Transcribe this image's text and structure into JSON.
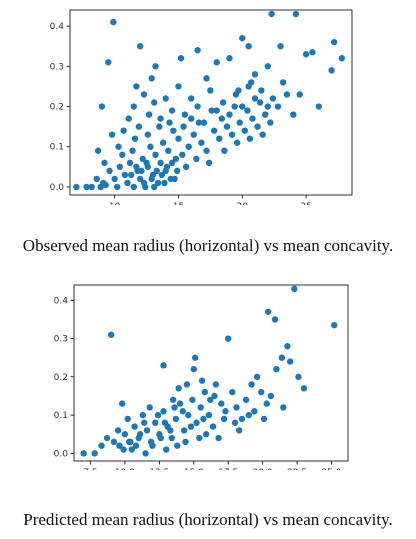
{
  "chart_data": [
    {
      "type": "scatter",
      "title": "",
      "xlabel": "",
      "ylabel": "",
      "color": "#1f77b4",
      "xlim": [
        6.5,
        28.6
      ],
      "ylim": [
        -0.02,
        0.44
      ],
      "xticks": [
        10,
        15,
        20,
        25
      ],
      "yticks": [
        0.0,
        0.1,
        0.2,
        0.3,
        0.4
      ],
      "ytick_labels": [
        "0.0",
        "0.1",
        "0.2",
        "0.3",
        "0.4"
      ],
      "points": [
        [
          7.0,
          0.0
        ],
        [
          7.8,
          0.0
        ],
        [
          8.2,
          0.0
        ],
        [
          8.6,
          0.02
        ],
        [
          8.9,
          0.0
        ],
        [
          9.1,
          0.01
        ],
        [
          9.3,
          0.005
        ],
        [
          8.7,
          0.09
        ],
        [
          9.2,
          0.06
        ],
        [
          9.8,
          0.13
        ],
        [
          9.5,
          0.31
        ],
        [
          9.9,
          0.41
        ],
        [
          9.0,
          0.2
        ],
        [
          9.6,
          0.04
        ],
        [
          10.0,
          0.02
        ],
        [
          10.2,
          0.0
        ],
        [
          10.4,
          0.05
        ],
        [
          10.6,
          0.08
        ],
        [
          10.8,
          0.03
        ],
        [
          11.0,
          0.01
        ],
        [
          11.2,
          0.06
        ],
        [
          11.4,
          0.09
        ],
        [
          11.6,
          0.12
        ],
        [
          11.8,
          0.04
        ],
        [
          12.0,
          0.02
        ],
        [
          12.2,
          0.07
        ],
        [
          12.4,
          0.0
        ],
        [
          12.6,
          0.05
        ],
        [
          12.8,
          0.1
        ],
        [
          13.0,
          0.03
        ],
        [
          13.2,
          0.08
        ],
        [
          13.4,
          0.01
        ],
        [
          13.6,
          0.06
        ],
        [
          13.8,
          0.11
        ],
        [
          14.0,
          0.04
        ],
        [
          14.2,
          0.09
        ],
        [
          14.4,
          0.02
        ],
        [
          14.6,
          0.14
        ],
        [
          14.8,
          0.07
        ],
        [
          15.0,
          0.12
        ],
        [
          10.3,
          0.1
        ],
        [
          10.7,
          0.14
        ],
        [
          11.1,
          0.17
        ],
        [
          11.5,
          0.2
        ],
        [
          11.9,
          0.15
        ],
        [
          12.3,
          0.23
        ],
        [
          12.7,
          0.18
        ],
        [
          13.1,
          0.21
        ],
        [
          12.0,
          0.35
        ],
        [
          13.2,
          0.3
        ],
        [
          11.7,
          0.25
        ],
        [
          12.9,
          0.27
        ],
        [
          13.6,
          0.17
        ],
        [
          14.0,
          0.22
        ],
        [
          14.5,
          0.19
        ],
        [
          15.0,
          0.25
        ],
        [
          15.5,
          0.18
        ],
        [
          16.0,
          0.22
        ],
        [
          16.5,
          0.2
        ],
        [
          17.0,
          0.16
        ],
        [
          17.5,
          0.24
        ],
        [
          18.0,
          0.19
        ],
        [
          18.5,
          0.21
        ],
        [
          19.0,
          0.18
        ],
        [
          19.5,
          0.23
        ],
        [
          20.0,
          0.2
        ],
        [
          20.5,
          0.25
        ],
        [
          21.0,
          0.22
        ],
        [
          21.5,
          0.24
        ],
        [
          22.0,
          0.2
        ],
        [
          15.2,
          0.32
        ],
        [
          16.5,
          0.34
        ],
        [
          18.0,
          0.31
        ],
        [
          19.0,
          0.32
        ],
        [
          20.0,
          0.37
        ],
        [
          20.5,
          0.35
        ],
        [
          22.3,
          0.43
        ],
        [
          23.0,
          0.35
        ],
        [
          24.2,
          0.43
        ],
        [
          25.0,
          0.33
        ],
        [
          25.5,
          0.335
        ],
        [
          23.5,
          0.23
        ],
        [
          24.5,
          0.23
        ],
        [
          24.0,
          0.18
        ],
        [
          26.0,
          0.2
        ],
        [
          27.2,
          0.36
        ],
        [
          27.0,
          0.29
        ],
        [
          27.8,
          0.32
        ],
        [
          15.3,
          0.08
        ],
        [
          15.8,
          0.1
        ],
        [
          16.2,
          0.13
        ],
        [
          16.8,
          0.11
        ],
        [
          17.2,
          0.09
        ],
        [
          17.8,
          0.14
        ],
        [
          18.2,
          0.12
        ],
        [
          18.8,
          0.15
        ],
        [
          19.2,
          0.13
        ],
        [
          19.8,
          0.16
        ],
        [
          20.2,
          0.14
        ],
        [
          20.8,
          0.17
        ],
        [
          21.2,
          0.15
        ],
        [
          21.8,
          0.18
        ],
        [
          22.2,
          0.16
        ],
        [
          15.6,
          0.05
        ],
        [
          16.4,
          0.07
        ],
        [
          17.4,
          0.06
        ],
        [
          18.6,
          0.09
        ],
        [
          19.6,
          0.11
        ],
        [
          20.6,
          0.12
        ],
        [
          21.6,
          0.13
        ],
        [
          11.3,
          0.03
        ],
        [
          11.7,
          0.05
        ],
        [
          12.1,
          0.04
        ],
        [
          12.5,
          0.06
        ],
        [
          12.9,
          0.02
        ],
        [
          13.3,
          0.04
        ],
        [
          13.7,
          0.03
        ],
        [
          14.1,
          0.05
        ],
        [
          14.5,
          0.06
        ],
        [
          14.9,
          0.04
        ],
        [
          11.5,
          0.0
        ],
        [
          12.3,
          0.01
        ],
        [
          13.1,
          0.0
        ],
        [
          13.9,
          0.01
        ],
        [
          14.7,
          0.02
        ],
        [
          12.6,
          0.13
        ],
        [
          13.5,
          0.15
        ],
        [
          14.3,
          0.16
        ],
        [
          15.4,
          0.15
        ],
        [
          16.0,
          0.17
        ],
        [
          16.6,
          0.16
        ],
        [
          17.6,
          0.19
        ],
        [
          18.4,
          0.17
        ],
        [
          19.4,
          0.2
        ],
        [
          20.4,
          0.19
        ],
        [
          21.4,
          0.21
        ],
        [
          22.4,
          0.22
        ],
        [
          23.2,
          0.26
        ],
        [
          22.8,
          0.2
        ],
        [
          21.0,
          0.28
        ],
        [
          22.0,
          0.3
        ],
        [
          20.7,
          0.26
        ],
        [
          19.7,
          0.24
        ],
        [
          17.2,
          0.27
        ]
      ]
    },
    {
      "type": "scatter",
      "title": "",
      "xlabel": "",
      "ylabel": "",
      "color": "#1f77b4",
      "xlim": [
        6.3,
        26.2
      ],
      "ylim": [
        -0.02,
        0.44
      ],
      "xticks": [
        7.5,
        10.0,
        12.5,
        15.0,
        17.5,
        20.0,
        22.5,
        25.0
      ],
      "xtick_labels": [
        "7.5",
        "10.0",
        "12.5",
        "15.0",
        "17.5",
        "20.0",
        "22.5",
        "25.0"
      ],
      "yticks": [
        0.0,
        0.1,
        0.2,
        0.3,
        0.4
      ],
      "ytick_labels": [
        "0.0",
        "0.1",
        "0.2",
        "0.3",
        "0.4"
      ],
      "points": [
        [
          7.0,
          0.0
        ],
        [
          7.8,
          0.0
        ],
        [
          8.3,
          0.02
        ],
        [
          8.7,
          0.04
        ],
        [
          9.2,
          0.03
        ],
        [
          9.5,
          0.06
        ],
        [
          9.8,
          0.13
        ],
        [
          9.0,
          0.31
        ],
        [
          9.6,
          0.02
        ],
        [
          10.0,
          0.05
        ],
        [
          10.2,
          0.09
        ],
        [
          10.4,
          0.03
        ],
        [
          10.7,
          0.07
        ],
        [
          11.0,
          0.04
        ],
        [
          11.3,
          0.1
        ],
        [
          11.6,
          0.06
        ],
        [
          11.9,
          0.03
        ],
        [
          12.2,
          0.08
        ],
        [
          12.5,
          0.05
        ],
        [
          12.8,
          0.11
        ],
        [
          13.1,
          0.07
        ],
        [
          13.4,
          0.04
        ],
        [
          13.7,
          0.09
        ],
        [
          14.0,
          0.13
        ],
        [
          14.3,
          0.06
        ],
        [
          14.6,
          0.1
        ],
        [
          14.9,
          0.14
        ],
        [
          15.2,
          0.08
        ],
        [
          15.5,
          0.12
        ],
        [
          15.8,
          0.16
        ],
        [
          16.1,
          0.1
        ],
        [
          16.4,
          0.07
        ],
        [
          10.5,
          0.01
        ],
        [
          11.5,
          0.0
        ],
        [
          12.0,
          0.02
        ],
        [
          13.0,
          0.01
        ],
        [
          12.8,
          0.23
        ],
        [
          13.5,
          0.14
        ],
        [
          13.9,
          0.17
        ],
        [
          14.5,
          0.18
        ],
        [
          15.0,
          0.22
        ],
        [
          15.1,
          0.25
        ],
        [
          15.6,
          0.19
        ],
        [
          16.2,
          0.14
        ],
        [
          16.6,
          0.18
        ],
        [
          17.0,
          0.13
        ],
        [
          17.3,
          0.11
        ],
        [
          17.8,
          0.16
        ],
        [
          18.1,
          0.12
        ],
        [
          18.5,
          0.09
        ],
        [
          18.8,
          0.14
        ],
        [
          19.2,
          0.18
        ],
        [
          19.6,
          0.2
        ],
        [
          19.9,
          0.16
        ],
        [
          20.3,
          0.13
        ],
        [
          20.6,
          0.15
        ],
        [
          21.0,
          0.22
        ],
        [
          21.4,
          0.25
        ],
        [
          21.8,
          0.28
        ],
        [
          22.0,
          0.24
        ],
        [
          22.3,
          0.43
        ],
        [
          20.4,
          0.37
        ],
        [
          20.9,
          0.35
        ],
        [
          25.2,
          0.335
        ],
        [
          23.0,
          0.17
        ],
        [
          22.6,
          0.2
        ],
        [
          17.5,
          0.3
        ],
        [
          16.5,
          0.15
        ],
        [
          14.2,
          0.11
        ],
        [
          11.8,
          0.12
        ],
        [
          12.4,
          0.1
        ],
        [
          13.6,
          0.12
        ],
        [
          14.8,
          0.07
        ],
        [
          15.9,
          0.05
        ],
        [
          17.2,
          0.09
        ],
        [
          18.3,
          0.06
        ],
        [
          19.4,
          0.11
        ],
        [
          10.8,
          0.02
        ],
        [
          11.1,
          0.05
        ],
        [
          12.6,
          0.04
        ],
        [
          13.3,
          0.06
        ],
        [
          14.4,
          0.03
        ],
        [
          15.4,
          0.04
        ],
        [
          16.8,
          0.04
        ],
        [
          18.0,
          0.08
        ],
        [
          19.0,
          0.1
        ],
        [
          20.1,
          0.09
        ],
        [
          21.5,
          0.12
        ],
        [
          9.9,
          0.01
        ],
        [
          10.3,
          0.03
        ],
        [
          11.4,
          0.08
        ],
        [
          12.9,
          0.08
        ],
        [
          13.8,
          0.02
        ],
        [
          15.7,
          0.09
        ]
      ]
    }
  ],
  "captions": [
    "Observed mean radius (horizontal) vs mean concavity.",
    "Predicted mean radius (horizontal) vs mean concavity."
  ]
}
